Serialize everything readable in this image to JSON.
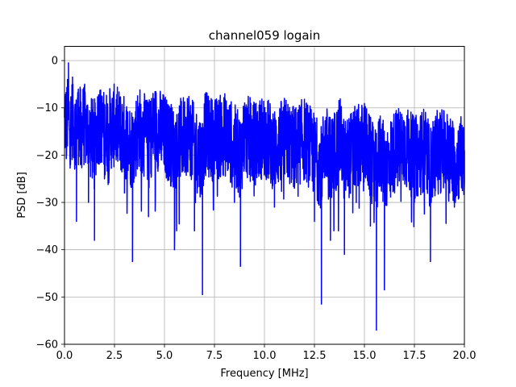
{
  "chart_data": {
    "type": "line",
    "title": "channel059 logain",
    "xlabel": "Frequency [MHz]",
    "ylabel": "PSD [dB]",
    "xlim": [
      0,
      20
    ],
    "ylim": [
      -60,
      3
    ],
    "grid": true,
    "xticks": [
      0,
      2.5,
      5,
      7.5,
      10,
      12.5,
      15,
      17.5,
      20
    ],
    "xtick_labels": [
      "0.0",
      "2.5",
      "5.0",
      "7.5",
      "10.0",
      "12.5",
      "15.0",
      "17.5",
      "20.0"
    ],
    "yticks": [
      0,
      -10,
      -20,
      -30,
      -40,
      -50,
      -60
    ],
    "ytick_labels": [
      "0",
      "−10",
      "−20",
      "−30",
      "−40",
      "−50",
      "−60"
    ],
    "series": [
      {
        "color": "#0000ff",
        "x": [
          0,
          0.05,
          0.1,
          0.15,
          0.2,
          0.3,
          0.4,
          0.5,
          0.6,
          0.65,
          0.8,
          1.0,
          1.2,
          1.5,
          1.7,
          2.0,
          2.5,
          3.0,
          3.4,
          3.7,
          4.2,
          4.5,
          5.0,
          5.5,
          6.2,
          6.5,
          6.9,
          7.0,
          7.5,
          8.0,
          8.5,
          8.8,
          9.0,
          9.5,
          10.0,
          10.5,
          11.0,
          11.5,
          12.0,
          12.5,
          12.85,
          13.0,
          13.3,
          13.8,
          14.0,
          14.5,
          15.0,
          15.3,
          15.6,
          15.8,
          16.0,
          16.5,
          17.0,
          17.5,
          18.0,
          18.3,
          18.5,
          19.0,
          19.5,
          20.0
        ],
        "values": [
          -12,
          -8,
          -20,
          -4,
          -0.5,
          -22,
          -3.5,
          -18,
          -34,
          -8,
          -22,
          -14,
          -30,
          -38,
          -9,
          -25,
          -13,
          -28,
          -42.5,
          -12,
          -33,
          -9,
          -22,
          -40,
          -12,
          -36,
          -49.5,
          -15,
          -24,
          -14,
          -30,
          -43.5,
          -13,
          -25,
          -12,
          -31,
          -15,
          -27,
          -13,
          -34,
          -51.5,
          -16,
          -38,
          -11,
          -41,
          -22,
          -13,
          -35,
          -57,
          -16,
          -48.5,
          -22,
          -13,
          -30,
          -15,
          -42.5,
          -22,
          -13,
          -31,
          -19
        ]
      }
    ]
  }
}
